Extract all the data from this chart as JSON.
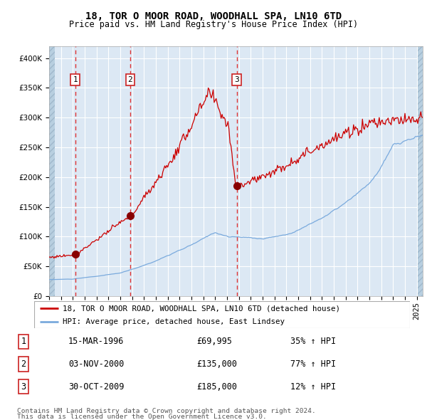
{
  "title": "18, TOR O MOOR ROAD, WOODHALL SPA, LN10 6TD",
  "subtitle": "Price paid vs. HM Land Registry's House Price Index (HPI)",
  "legend_line1": "18, TOR O MOOR ROAD, WOODHALL SPA, LN10 6TD (detached house)",
  "legend_line2": "HPI: Average price, detached house, East Lindsey",
  "footer1": "Contains HM Land Registry data © Crown copyright and database right 2024.",
  "footer2": "This data is licensed under the Open Government Licence v3.0.",
  "transactions": [
    {
      "num": 1,
      "date": "15-MAR-1996",
      "price": 69995,
      "pct": "35%",
      "dir": "↑"
    },
    {
      "num": 2,
      "date": "03-NOV-2000",
      "price": 135000,
      "pct": "77%",
      "dir": "↑"
    },
    {
      "num": 3,
      "date": "30-OCT-2009",
      "price": 185000,
      "pct": "12%",
      "dir": "↑"
    }
  ],
  "transaction_dates_decimal": [
    1996.204,
    2000.84,
    2009.829
  ],
  "transaction_prices": [
    69995,
    135000,
    185000
  ],
  "ylim": [
    0,
    420000
  ],
  "yticks": [
    0,
    50000,
    100000,
    150000,
    200000,
    250000,
    300000,
    350000,
    400000
  ],
  "xlim_start": 1994.0,
  "xlim_end": 2025.5,
  "plot_bg_color": "#dce8f4",
  "hatch_color": "#b8cfe0",
  "grid_color": "#ffffff",
  "red_line_color": "#cc0000",
  "blue_line_color": "#7aaadd",
  "dot_color": "#880000",
  "dashed_line_color": "#dd3333",
  "box_edge_color": "#cc2222",
  "title_fontsize": 10,
  "subtitle_fontsize": 8.5,
  "tick_fontsize": 7.5,
  "legend_fontsize": 8,
  "table_fontsize": 8.5,
  "footer_fontsize": 7
}
